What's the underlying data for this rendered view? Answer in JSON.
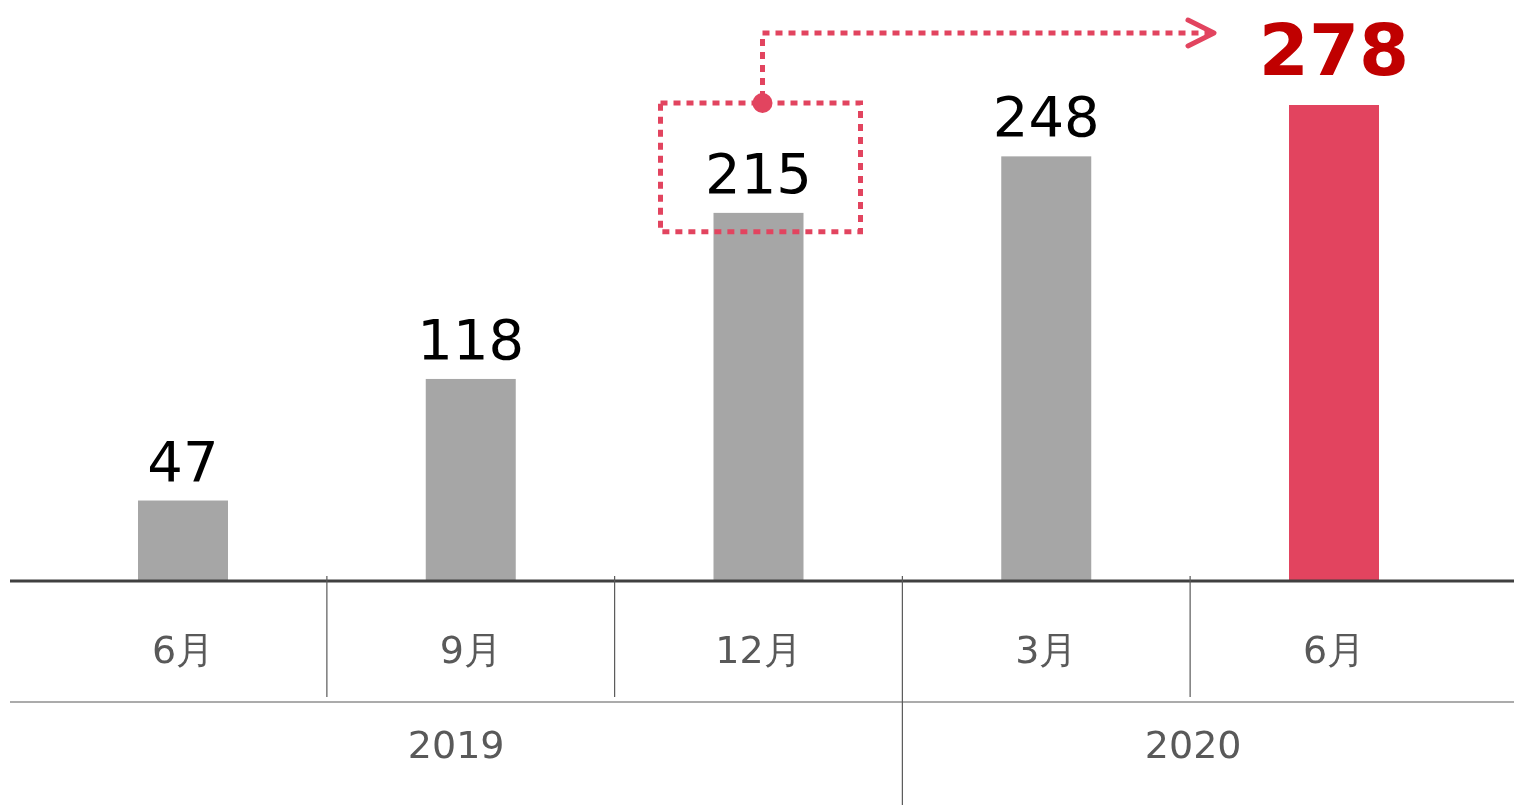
{
  "chart_data": {
    "type": "bar",
    "categories": [
      "6月",
      "9月",
      "12月",
      "3月",
      "6月"
    ],
    "values": [
      47,
      118,
      215,
      248,
      278
    ],
    "colors": [
      "#a6a6a6",
      "#a6a6a6",
      "#a6a6a6",
      "#a6a6a6",
      "#e2445f"
    ],
    "data_labels": true,
    "annotations": [
      "2019",
      "2020"
    ]
  }
}
